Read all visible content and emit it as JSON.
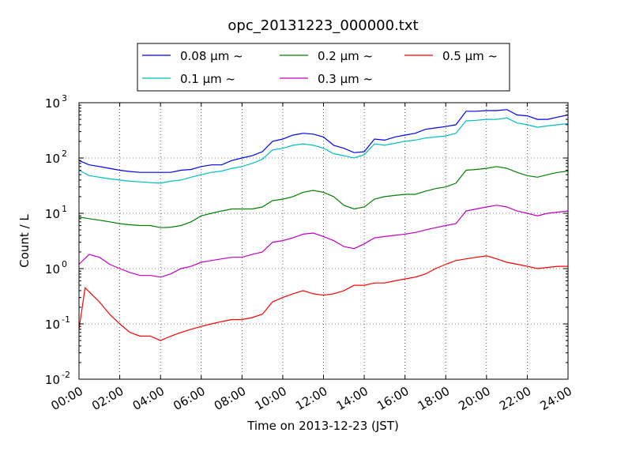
{
  "chart_data": {
    "type": "line",
    "title": "opc_20131223_000000.txt",
    "xlabel": "Time on 2013-12-23 (JST)",
    "ylabel": "Count / L",
    "xlim": [
      "00:00",
      "24:00"
    ],
    "x_ticks": [
      "00:00",
      "02:00",
      "04:00",
      "06:00",
      "08:00",
      "10:00",
      "12:00",
      "14:00",
      "16:00",
      "18:00",
      "20:00",
      "22:00",
      "24:00"
    ],
    "y_scale": "log",
    "ylim": [
      0.01,
      1000
    ],
    "y_ticks": [
      {
        "base": "10",
        "exp": "-2"
      },
      {
        "base": "10",
        "exp": "-1"
      },
      {
        "base": "10",
        "exp": "0"
      },
      {
        "base": "10",
        "exp": "1"
      },
      {
        "base": "10",
        "exp": "2"
      },
      {
        "base": "10",
        "exp": "3"
      }
    ],
    "grid": true,
    "legend": "top-center, above plot, 3 columns",
    "series": [
      {
        "name": "0.08 µm ~",
        "color": "#0000ff",
        "x": [
          0,
          0.5,
          1,
          1.5,
          2,
          2.5,
          3,
          3.5,
          4,
          4.5,
          5,
          5.5,
          6,
          6.5,
          7,
          7.5,
          8,
          8.5,
          9,
          9.5,
          10,
          10.5,
          11,
          11.5,
          12,
          12.5,
          13,
          13.5,
          14,
          14.5,
          15,
          15.5,
          16,
          16.5,
          17,
          17.5,
          18,
          18.5,
          19,
          19.5,
          20,
          20.5,
          21,
          21.5,
          22,
          22.5,
          23,
          23.5,
          24
        ],
        "y": [
          90,
          75,
          70,
          65,
          60,
          57,
          55,
          55,
          55,
          55,
          60,
          62,
          70,
          75,
          75,
          90,
          100,
          110,
          130,
          200,
          220,
          260,
          280,
          270,
          240,
          170,
          150,
          125,
          130,
          220,
          210,
          240,
          260,
          280,
          330,
          350,
          370,
          400,
          700,
          700,
          720,
          720,
          750,
          600,
          580,
          500,
          500,
          550,
          600
        ]
      },
      {
        "name": "0.1 µm ~",
        "color": "#00bfbf",
        "x": [
          0,
          0.5,
          1,
          1.5,
          2,
          2.5,
          3,
          3.5,
          4,
          4.5,
          5,
          5.5,
          6,
          6.5,
          7,
          7.5,
          8,
          8.5,
          9,
          9.5,
          10,
          10.5,
          11,
          11.5,
          12,
          12.5,
          13,
          13.5,
          14,
          14.5,
          15,
          15.5,
          16,
          16.5,
          17,
          17.5,
          18,
          18.5,
          19,
          19.5,
          20,
          20.5,
          21,
          21.5,
          22,
          22.5,
          23,
          23.5,
          24
        ],
        "y": [
          60,
          48,
          45,
          42,
          40,
          38,
          37,
          36,
          35,
          38,
          40,
          45,
          50,
          55,
          58,
          65,
          70,
          80,
          95,
          140,
          150,
          170,
          180,
          170,
          150,
          120,
          110,
          100,
          115,
          180,
          170,
          185,
          200,
          210,
          230,
          240,
          250,
          280,
          470,
          480,
          500,
          500,
          530,
          430,
          400,
          360,
          380,
          400,
          420
        ]
      },
      {
        "name": "0.2 µm ~",
        "color": "#008000",
        "x": [
          0,
          0.5,
          1,
          1.5,
          2,
          2.5,
          3,
          3.5,
          4,
          4.5,
          5,
          5.5,
          6,
          6.5,
          7,
          7.5,
          8,
          8.5,
          9,
          9.5,
          10,
          10.5,
          11,
          11.5,
          12,
          12.5,
          13,
          13.5,
          14,
          14.5,
          15,
          15.5,
          16,
          16.5,
          17,
          17.5,
          18,
          18.5,
          19,
          19.5,
          20,
          20.5,
          21,
          21.5,
          22,
          22.5,
          23,
          23.5,
          24
        ],
        "y": [
          8.5,
          8,
          7.5,
          7,
          6.5,
          6.2,
          6,
          6,
          5.5,
          5.6,
          6,
          7,
          9,
          10,
          11,
          12,
          12,
          12,
          13,
          17,
          18,
          20,
          24,
          26,
          24,
          20,
          14,
          12,
          13,
          18,
          20,
          21,
          22,
          22,
          25,
          28,
          30,
          35,
          60,
          62,
          65,
          70,
          65,
          55,
          48,
          45,
          50,
          55,
          58
        ]
      },
      {
        "name": "0.3 µm ~",
        "color": "#bf00bf",
        "x": [
          0,
          0.5,
          1,
          1.5,
          2,
          2.5,
          3,
          3.5,
          4,
          4.5,
          5,
          5.5,
          6,
          6.5,
          7,
          7.5,
          8,
          8.5,
          9,
          9.5,
          10,
          10.5,
          11,
          11.5,
          12,
          12.5,
          13,
          13.5,
          14,
          14.5,
          15,
          15.5,
          16,
          16.5,
          17,
          17.5,
          18,
          18.5,
          19,
          19.5,
          20,
          20.5,
          21,
          21.5,
          22,
          22.5,
          23,
          23.5,
          24
        ],
        "y": [
          1.2,
          1.8,
          1.6,
          1.2,
          1,
          0.85,
          0.75,
          0.75,
          0.7,
          0.8,
          1,
          1.1,
          1.3,
          1.4,
          1.5,
          1.6,
          1.6,
          1.8,
          2,
          3,
          3.2,
          3.6,
          4.2,
          4.4,
          3.8,
          3.2,
          2.5,
          2.3,
          2.8,
          3.6,
          3.8,
          4,
          4.2,
          4.5,
          5,
          5.5,
          6,
          6.5,
          11,
          12,
          13,
          14,
          13,
          11,
          10,
          9,
          10,
          10.5,
          11
        ]
      },
      {
        "name": "0.5 µm ~",
        "color": "#ff0000",
        "x": [
          0,
          0.3,
          0.6,
          1,
          1.5,
          2,
          2.5,
          3,
          3.5,
          4,
          4.5,
          5,
          5.5,
          6,
          6.5,
          7,
          7.5,
          8,
          8.5,
          9,
          9.5,
          10,
          10.5,
          11,
          11.5,
          12,
          12.5,
          13,
          13.5,
          14,
          14.5,
          15,
          15.5,
          16,
          16.5,
          17,
          17.5,
          18,
          18.5,
          19,
          19.5,
          20,
          20.5,
          21,
          21.5,
          22,
          22.5,
          23,
          23.5,
          24
        ],
        "y": [
          0.08,
          0.45,
          0.35,
          0.25,
          0.15,
          0.1,
          0.07,
          0.06,
          0.06,
          0.05,
          0.06,
          0.07,
          0.08,
          0.09,
          0.1,
          0.11,
          0.12,
          0.12,
          0.13,
          0.15,
          0.25,
          0.3,
          0.35,
          0.4,
          0.35,
          0.33,
          0.35,
          0.4,
          0.5,
          0.5,
          0.55,
          0.55,
          0.6,
          0.65,
          0.7,
          0.8,
          1.0,
          1.2,
          1.4,
          1.5,
          1.6,
          1.7,
          1.5,
          1.3,
          1.2,
          1.1,
          1.0,
          1.05,
          1.1,
          1.1
        ]
      }
    ]
  }
}
